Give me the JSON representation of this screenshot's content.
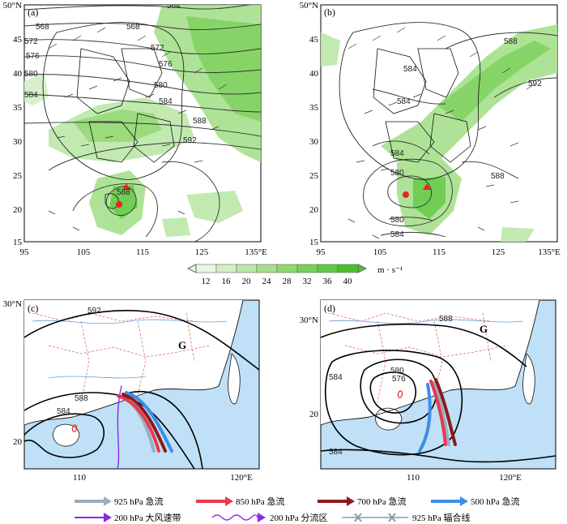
{
  "panels": {
    "a": {
      "label": "(a)",
      "lat_ticks": [
        "50°N",
        "45",
        "40",
        "35",
        "30",
        "25",
        "20",
        "15"
      ],
      "lon_ticks": [
        "95",
        "105",
        "115",
        "125",
        "135°E"
      ],
      "contours": [
        "564",
        "568",
        "568",
        "572",
        "572",
        "576",
        "576",
        "580",
        "580",
        "584",
        "584",
        "588",
        "588",
        "592"
      ]
    },
    "b": {
      "label": "(b)",
      "lat_ticks": [
        "50°N",
        "45",
        "40",
        "35",
        "30",
        "25",
        "20",
        "15"
      ],
      "lon_ticks": [
        "95",
        "105",
        "115",
        "125",
        "135°E"
      ],
      "contours": [
        "588",
        "592",
        "584",
        "584",
        "584",
        "580",
        "588",
        "580",
        "584"
      ]
    },
    "c": {
      "label": "(c)",
      "lat_ticks": [
        "30°N",
        "20"
      ],
      "lon_ticks": [
        "110",
        "120°E"
      ],
      "contours": [
        "592",
        "588",
        "584"
      ],
      "high_label": "G"
    },
    "d": {
      "label": "(d)",
      "lat_ticks": [
        "30°N",
        "20"
      ],
      "lon_ticks": [
        "110",
        "120°E"
      ],
      "contours": [
        "588",
        "580",
        "576",
        "584",
        "584"
      ],
      "high_label": "G"
    }
  },
  "colorbar": {
    "ticks": [
      "12",
      "16",
      "20",
      "24",
      "28",
      "32",
      "36",
      "40"
    ],
    "unit": "m · s⁻¹",
    "colors": [
      "#e8f7e0",
      "#d2f0c4",
      "#bce8a8",
      "#a6e08c",
      "#8fd870",
      "#79d058",
      "#62c842",
      "#4cc02c"
    ]
  },
  "legend": {
    "items": [
      {
        "label": "925 hPa 急流",
        "color": "#9aaec0"
      },
      {
        "label": "850 hPa 急流",
        "color": "#e8384f"
      },
      {
        "label": "700 hPa 急流",
        "color": "#8c1a1a"
      },
      {
        "label": "500 hPa 急流",
        "color": "#3c8ee8"
      },
      {
        "label": "200 hPa 大风速带",
        "color": "#8a2be2"
      },
      {
        "label": "200 hPa 分流区",
        "color": "#8a2be2"
      },
      {
        "label": "925 hPa 辐合线",
        "color": "#8a9aa8"
      }
    ]
  }
}
